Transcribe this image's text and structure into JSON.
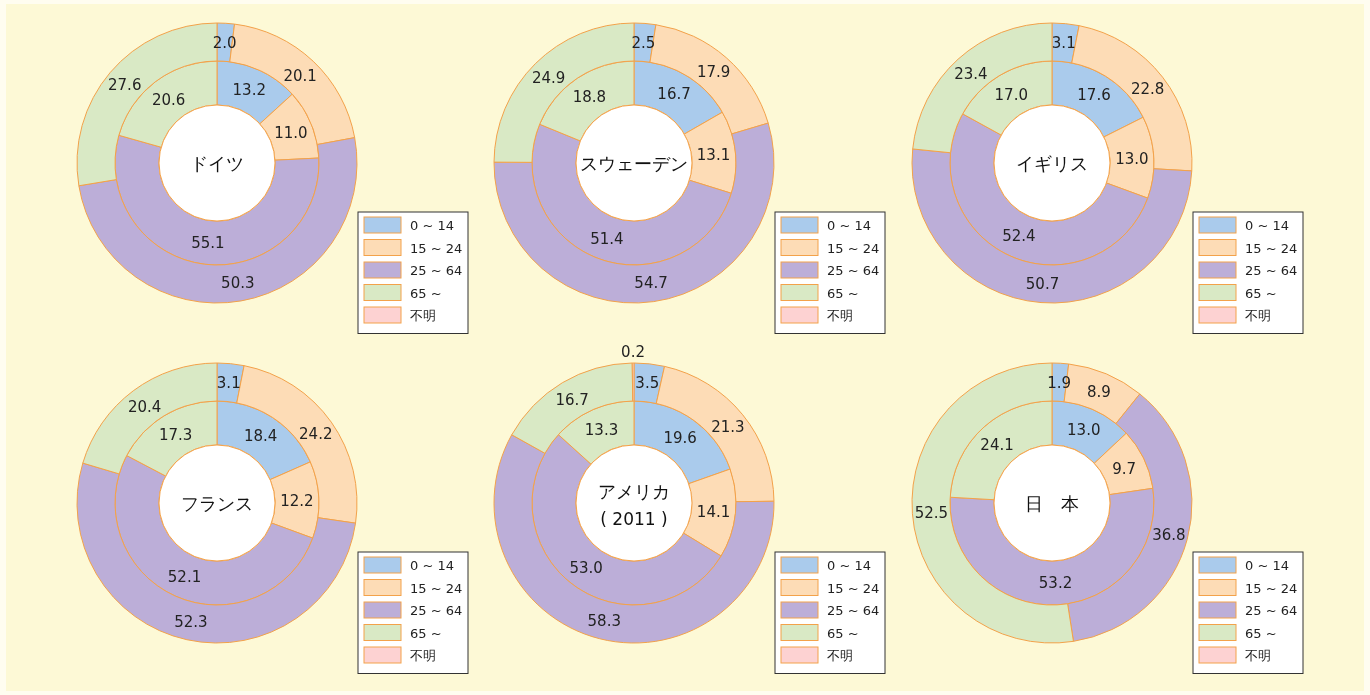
{
  "chart_data": [
    {
      "type": "donut",
      "title": "ドイツ",
      "categories": [
        "0 ~ 14",
        "15 ~ 24",
        "25 ~ 64",
        "65 ~",
        "不明"
      ],
      "colors": [
        "#aacbec",
        "#fddcb6",
        "#bcaed8",
        "#d9e9c5",
        "#fdd2d2"
      ],
      "legend": "bottom right",
      "series": [
        {
          "values": [
            13.2,
            11.0,
            55.1,
            20.6,
            null
          ],
          "value_labels": [
            "13.2",
            "11.0",
            "55.1",
            "20.6",
            null
          ]
        },
        {
          "values": [
            2.0,
            20.1,
            50.3,
            27.6,
            null
          ],
          "value_labels": [
            "2.0",
            "20.1",
            "50.3",
            "27.6",
            null
          ]
        }
      ]
    },
    {
      "type": "donut",
      "title": "スウェーデン",
      "categories": [
        "0 ~ 14",
        "15 ~ 24",
        "25 ~ 64",
        "65 ~",
        "不明"
      ],
      "colors": [
        "#aacbec",
        "#fddcb6",
        "#bcaed8",
        "#d9e9c5",
        "#fdd2d2"
      ],
      "legend": "bottom right",
      "series": [
        {
          "values": [
            16.7,
            13.1,
            51.4,
            18.8,
            null
          ],
          "value_labels": [
            "16.7",
            "13.1",
            "51.4",
            "18.8",
            null
          ]
        },
        {
          "values": [
            2.5,
            17.9,
            54.7,
            24.9,
            null
          ],
          "value_labels": [
            "2.5",
            "17.9",
            "54.7",
            "24.9",
            null
          ]
        }
      ]
    },
    {
      "type": "donut",
      "title": "イギリス",
      "categories": [
        "0 ~ 14",
        "15 ~ 24",
        "25 ~ 64",
        "65 ~",
        "不明"
      ],
      "colors": [
        "#aacbec",
        "#fddcb6",
        "#bcaed8",
        "#d9e9c5",
        "#fdd2d2"
      ],
      "legend": "bottom right",
      "series": [
        {
          "values": [
            17.6,
            13.0,
            52.4,
            17.0,
            null
          ],
          "value_labels": [
            "17.6",
            "13.0",
            "52.4",
            "17.0",
            null
          ]
        },
        {
          "values": [
            3.1,
            22.8,
            50.7,
            23.4,
            null
          ],
          "value_labels": [
            "3.1",
            "22.8",
            "50.7",
            "23.4",
            null
          ]
        }
      ]
    },
    {
      "type": "donut",
      "title": "フランス",
      "categories": [
        "0 ~ 14",
        "15 ~ 24",
        "25 ~ 64",
        "65 ~",
        "不明"
      ],
      "colors": [
        "#aacbec",
        "#fddcb6",
        "#bcaed8",
        "#d9e9c5",
        "#fdd2d2"
      ],
      "legend": "bottom right",
      "series": [
        {
          "values": [
            18.4,
            12.2,
            52.1,
            17.3,
            null
          ],
          "value_labels": [
            "18.4",
            "12.2",
            "52.1",
            "17.3",
            null
          ]
        },
        {
          "values": [
            3.1,
            24.2,
            52.3,
            20.4,
            null
          ],
          "value_labels": [
            "3.1",
            "24.2",
            "52.3",
            "20.4",
            null
          ]
        }
      ]
    },
    {
      "type": "donut",
      "title": "アメリカ",
      "subtitle": "( 2011 )",
      "categories": [
        "0 ~ 14",
        "15 ~ 24",
        "25 ~ 64",
        "65 ~",
        "不明"
      ],
      "colors": [
        "#aacbec",
        "#fddcb6",
        "#bcaed8",
        "#d9e9c5",
        "#fdd2d2"
      ],
      "legend": "bottom right",
      "series": [
        {
          "values": [
            19.6,
            14.1,
            53.0,
            13.3,
            null
          ],
          "value_labels": [
            "19.6",
            "14.1",
            "53.0",
            "13.3",
            null
          ]
        },
        {
          "values": [
            3.5,
            21.3,
            58.3,
            16.7,
            0.2
          ],
          "value_labels": [
            "3.5",
            "21.3",
            "58.3",
            "16.7",
            "0.2"
          ]
        }
      ]
    },
    {
      "type": "donut",
      "title": "日　本",
      "categories": [
        "0 ~ 14",
        "15 ~ 24",
        "25 ~ 64",
        "65 ~",
        "不明"
      ],
      "colors": [
        "#aacbec",
        "#fddcb6",
        "#bcaed8",
        "#d9e9c5",
        "#fdd2d2"
      ],
      "legend": "bottom right",
      "series": [
        {
          "values": [
            13.0,
            9.7,
            53.2,
            24.1,
            null
          ],
          "value_labels": [
            "13.0",
            "9.7",
            "53.2",
            "24.1",
            null
          ]
        },
        {
          "values": [
            1.9,
            8.9,
            36.8,
            52.5,
            null
          ],
          "value_labels": [
            "1.9",
            "8.9",
            "36.8",
            "52.5",
            null
          ]
        }
      ]
    }
  ]
}
